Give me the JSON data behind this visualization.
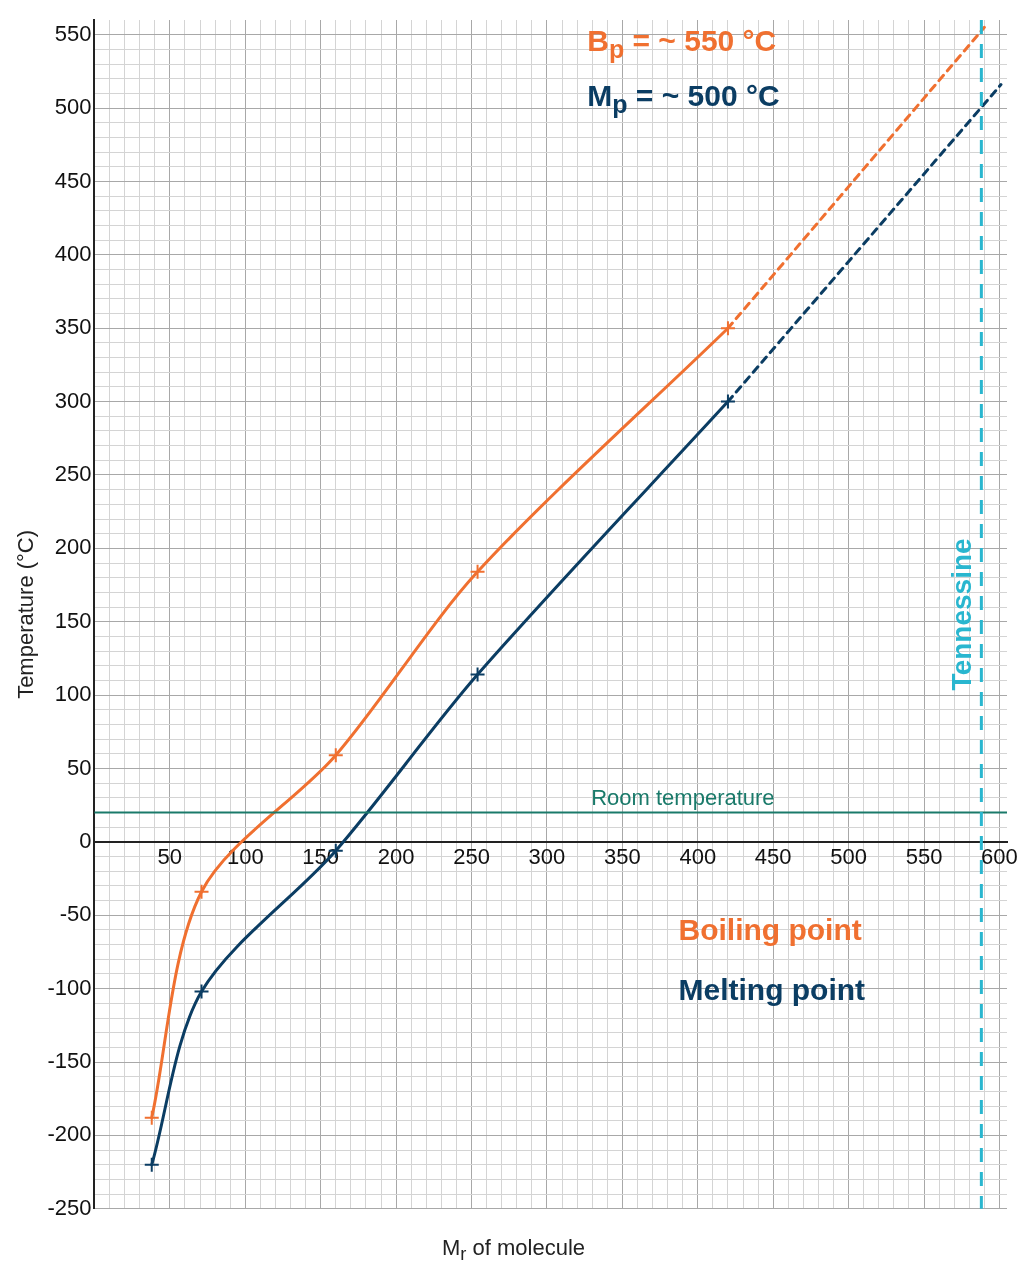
{
  "chart_data": {
    "type": "line",
    "xlabel": "M$_{r}$ of molecule",
    "ylabel": "Temperature (°C)",
    "xlim": [
      0,
      605
    ],
    "ylim": [
      -250,
      560
    ],
    "xticks": [
      {
        "value": 0,
        "label": null
      },
      {
        "value": 10,
        "label": null
      },
      {
        "value": 20,
        "label": null
      },
      {
        "value": 30,
        "label": null
      },
      {
        "value": 40,
        "label": null
      },
      50,
      {
        "value": 60,
        "label": null
      },
      {
        "value": 70,
        "label": null
      },
      {
        "value": 80,
        "label": null
      },
      {
        "value": 90,
        "label": null
      },
      100,
      {
        "value": 110,
        "label": null
      },
      {
        "value": 120,
        "label": null
      },
      {
        "value": 130,
        "label": null
      },
      {
        "value": 140,
        "label": null
      },
      150,
      {
        "value": 160,
        "label": null
      },
      {
        "value": 170,
        "label": null
      },
      {
        "value": 180,
        "label": null
      },
      {
        "value": 190,
        "label": null
      },
      200,
      {
        "value": 210,
        "label": null
      },
      {
        "value": 220,
        "label": null
      },
      {
        "value": 230,
        "label": null
      },
      {
        "value": 240,
        "label": null
      },
      250,
      {
        "value": 260,
        "label": null
      },
      {
        "value": 270,
        "label": null
      },
      {
        "value": 280,
        "label": null
      },
      {
        "value": 290,
        "label": null
      },
      300,
      {
        "value": 310,
        "label": null
      },
      {
        "value": 320,
        "label": null
      },
      {
        "value": 330,
        "label": null
      },
      {
        "value": 340,
        "label": null
      },
      350,
      {
        "value": 360,
        "label": null
      },
      {
        "value": 370,
        "label": null
      },
      {
        "value": 380,
        "label": null
      },
      {
        "value": 390,
        "label": null
      },
      400,
      {
        "value": 410,
        "label": null
      },
      {
        "value": 420,
        "label": null
      },
      {
        "value": 430,
        "label": null
      },
      {
        "value": 440,
        "label": null
      },
      450,
      {
        "value": 460,
        "label": null
      },
      {
        "value": 470,
        "label": null
      },
      {
        "value": 480,
        "label": null
      },
      {
        "value": 490,
        "label": null
      },
      500,
      {
        "value": 510,
        "label": null
      },
      {
        "value": 520,
        "label": null
      },
      {
        "value": 530,
        "label": null
      },
      {
        "value": 540,
        "label": null
      },
      550,
      {
        "value": 560,
        "label": null
      },
      {
        "value": 570,
        "label": null
      },
      {
        "value": 580,
        "label": null
      },
      {
        "value": 590,
        "label": null
      },
      600
    ],
    "yticks": [
      -250,
      {
        "value": -240,
        "label": null
      },
      {
        "value": -230,
        "label": null
      },
      {
        "value": -220,
        "label": null
      },
      {
        "value": -210,
        "label": null
      },
      -200,
      {
        "value": -190,
        "label": null
      },
      {
        "value": -180,
        "label": null
      },
      {
        "value": -170,
        "label": null
      },
      {
        "value": -160,
        "label": null
      },
      -150,
      {
        "value": -140,
        "label": null
      },
      {
        "value": -130,
        "label": null
      },
      {
        "value": -120,
        "label": null
      },
      {
        "value": -110,
        "label": null
      },
      -100,
      {
        "value": -90,
        "label": null
      },
      {
        "value": -80,
        "label": null
      },
      {
        "value": -70,
        "label": null
      },
      {
        "value": -60,
        "label": null
      },
      -50,
      {
        "value": -40,
        "label": null
      },
      {
        "value": -30,
        "label": null
      },
      {
        "value": -20,
        "label": null
      },
      {
        "value": -10,
        "label": null
      },
      0,
      {
        "value": 10,
        "label": null
      },
      {
        "value": 20,
        "label": null
      },
      {
        "value": 30,
        "label": null
      },
      {
        "value": 40,
        "label": null
      },
      50,
      {
        "value": 60,
        "label": null
      },
      {
        "value": 70,
        "label": null
      },
      {
        "value": 80,
        "label": null
      },
      {
        "value": 90,
        "label": null
      },
      100,
      {
        "value": 110,
        "label": null
      },
      {
        "value": 120,
        "label": null
      },
      {
        "value": 130,
        "label": null
      },
      {
        "value": 140,
        "label": null
      },
      150,
      {
        "value": 160,
        "label": null
      },
      {
        "value": 170,
        "label": null
      },
      {
        "value": 180,
        "label": null
      },
      {
        "value": 190,
        "label": null
      },
      200,
      {
        "value": 210,
        "label": null
      },
      {
        "value": 220,
        "label": null
      },
      {
        "value": 230,
        "label": null
      },
      {
        "value": 240,
        "label": null
      },
      250,
      {
        "value": 260,
        "label": null
      },
      {
        "value": 270,
        "label": null
      },
      {
        "value": 280,
        "label": null
      },
      {
        "value": 290,
        "label": null
      },
      300,
      {
        "value": 310,
        "label": null
      },
      {
        "value": 320,
        "label": null
      },
      {
        "value": 330,
        "label": null
      },
      {
        "value": 340,
        "label": null
      },
      350,
      {
        "value": 360,
        "label": null
      },
      {
        "value": 370,
        "label": null
      },
      {
        "value": 380,
        "label": null
      },
      {
        "value": 390,
        "label": null
      },
      400,
      {
        "value": 410,
        "label": null
      },
      {
        "value": 420,
        "label": null
      },
      {
        "value": 430,
        "label": null
      },
      {
        "value": 440,
        "label": null
      },
      450,
      {
        "value": 460,
        "label": null
      },
      {
        "value": 470,
        "label": null
      },
      {
        "value": 480,
        "label": null
      },
      {
        "value": 490,
        "label": null
      },
      500,
      {
        "value": 510,
        "label": null
      },
      {
        "value": 520,
        "label": null
      },
      {
        "value": 530,
        "label": null
      },
      {
        "value": 540,
        "label": null
      },
      550
    ],
    "grid": true,
    "legend": "bottom right",
    "series": [
      {
        "name": "Boiling point",
        "color": "#f07030",
        "x": [
          38,
          71,
          160,
          254,
          420
        ],
        "values": [
          -188,
          -34,
          59,
          184,
          350
        ],
        "marker": "cross",
        "line_style": "solid"
      },
      {
        "name": "Melting point",
        "color": "#0b3d63",
        "x": [
          38,
          71,
          160,
          254,
          420
        ],
        "values": [
          -220,
          -102,
          -6,
          114,
          300
        ],
        "marker": "cross",
        "line_style": "solid"
      },
      {
        "color": "#f07030",
        "x": [
          420,
          590
        ],
        "values": [
          350,
          555
        ],
        "marker": "none",
        "line_style": "dashed"
      },
      {
        "color": "#0b3d63",
        "x": [
          420,
          601
        ],
        "values": [
          300,
          516
        ],
        "marker": "none",
        "line_style": "dashed"
      }
    ],
    "ref_lines": [
      {
        "axis": "y",
        "value": 20,
        "label": "Room temperature",
        "color": "#1a7a6a",
        "line_style": "solid"
      },
      {
        "axis": "x",
        "value": 588,
        "label": "Tennessine",
        "color": "#29b6cf",
        "line_style": "dashed"
      }
    ],
    "annotations": [
      "B$_{p}$ = ~ 550 °C",
      "M$_{p}$ = ~ 500 °C"
    ]
  }
}
